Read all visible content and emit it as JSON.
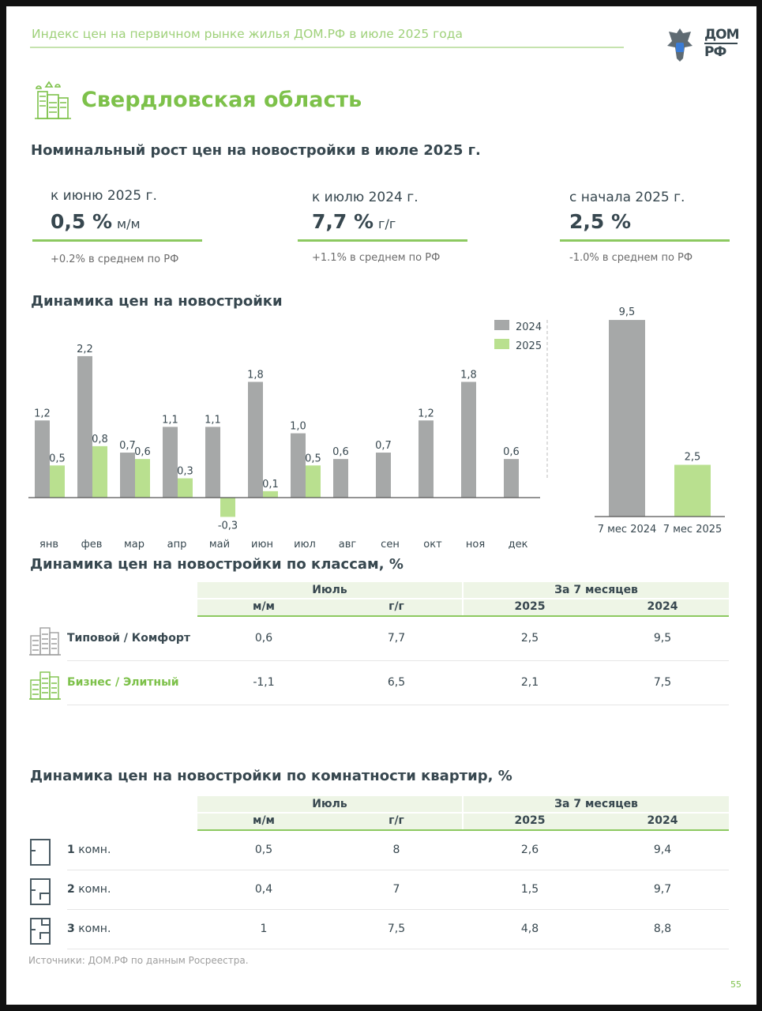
{
  "header": {
    "title": "Индекс цен на первичном рынке жилья ДОМ.РФ в июле 2025 года",
    "logo_text": "ДОМ.РФ"
  },
  "region": "Свердловская область",
  "nominal": {
    "title": "Номинальный рост цен на новостройки в июле 2025 г.",
    "kpis": [
      {
        "label": "к июню 2025 г.",
        "value": "0,5 %",
        "unit": "м/м",
        "note": "+0.2% в среднем по РФ"
      },
      {
        "label": "к июлю 2024 г.",
        "value": "7,7 %",
        "unit": "г/г",
        "note": "+1.1% в среднем по РФ"
      },
      {
        "label": "с начала 2025 г.",
        "value": "2,5 %",
        "unit": "",
        "note": "-1.0% в среднем по РФ"
      }
    ]
  },
  "colors": {
    "s2024": "#a6a8a8",
    "s2025": "#b9e08f",
    "accent": "#7dc14a"
  },
  "chart_data": [
    {
      "type": "bar",
      "title": "Динамика цен на новостройки",
      "categories": [
        "янв",
        "фев",
        "мар",
        "апр",
        "май",
        "июн",
        "июл",
        "авг",
        "сен",
        "окт",
        "ноя",
        "дек"
      ],
      "series": [
        {
          "name": "2024",
          "values": [
            1.2,
            2.2,
            0.7,
            1.1,
            1.1,
            1.8,
            1.0,
            0.6,
            0.7,
            1.2,
            1.8,
            0.6
          ],
          "labels": [
            "1,2",
            "2,2",
            "0,7",
            "1,1",
            "1,1",
            "1,8",
            "1,0",
            "0,6",
            "0,7",
            "1,2",
            "1,8",
            "0,6"
          ]
        },
        {
          "name": "2025",
          "values": [
            0.5,
            0.8,
            0.6,
            0.3,
            -0.3,
            0.1,
            0.5,
            null,
            null,
            null,
            null,
            null
          ],
          "labels": [
            "0,5",
            "0,8",
            "0,6",
            "0,3",
            "-0,3",
            "0,1",
            "0,5",
            null,
            null,
            null,
            null,
            null
          ]
        }
      ],
      "legend": "top-right"
    },
    {
      "type": "bar",
      "categories": [
        "7 мес 2024",
        "7 мес 2025"
      ],
      "values": [
        9.5,
        2.5
      ],
      "labels": [
        "9,5",
        "2,5"
      ]
    }
  ],
  "classes": {
    "title": "Динамика цен на новостройки по классам, %",
    "group_headers": [
      "Июль",
      "За 7 месяцев"
    ],
    "col_headers": [
      "м/м",
      "г/г",
      "2025",
      "2024"
    ],
    "rows": [
      {
        "label": "Типовой / Комфорт",
        "values": [
          "0,6",
          "7,7",
          "2,5",
          "9,5"
        ]
      },
      {
        "label": "Бизнес / Элитный",
        "values": [
          "-1,1",
          "6,5",
          "2,1",
          "7,5"
        ]
      }
    ]
  },
  "rooms": {
    "title": "Динамика цен на новостройки по комнатности квартир, %",
    "group_headers": [
      "Июль",
      "За 7 месяцев"
    ],
    "col_headers": [
      "м/м",
      "г/г",
      "2025",
      "2024"
    ],
    "rows": [
      {
        "num": "1",
        "suffix": "комн.",
        "values": [
          "0,5",
          "8",
          "2,6",
          "9,4"
        ]
      },
      {
        "num": "2",
        "suffix": "комн.",
        "values": [
          "0,4",
          "7",
          "1,5",
          "9,7"
        ]
      },
      {
        "num": "3",
        "suffix": "комн.",
        "values": [
          "1",
          "7,5",
          "4,8",
          "8,8"
        ]
      }
    ]
  },
  "footer": {
    "source": "Источники: ДОМ.РФ по данным Росреестра.",
    "page": "55"
  }
}
